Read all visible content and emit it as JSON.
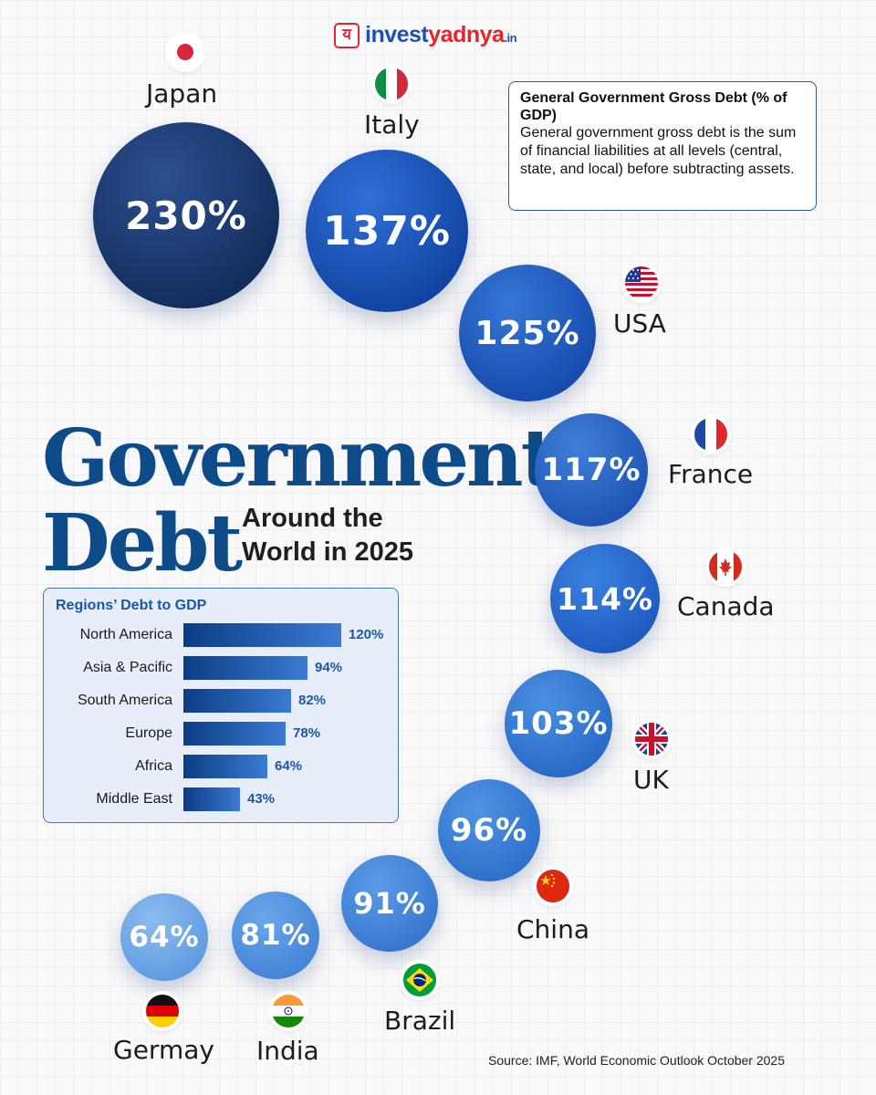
{
  "brand": {
    "logo_part1": "invest",
    "logo_part2": "yadnya",
    "logo_suffix": ".in",
    "logo_mark": "य"
  },
  "info_box": {
    "title": "General Government Gross Debt (% of GDP)",
    "body": "General government gross debt is the sum of financial liabilities at all levels (central, state, and local) before subtracting assets."
  },
  "headline": {
    "line1": "Government",
    "line2": "Debt",
    "subtitle": "Around the World in 2025"
  },
  "source": "Source: IMF, World Economic Outlook October 2025",
  "colors": {
    "title": "#0e4c89",
    "accent": "#1d56a8",
    "logo_red": "#e5262e"
  },
  "chart_data": [
    {
      "type": "bubble",
      "unit": "% of GDP",
      "items": [
        {
          "country": "Japan",
          "value": 230,
          "label": "230%",
          "flag": "japan-flag"
        },
        {
          "country": "Italy",
          "value": 137,
          "label": "137%",
          "flag": "italy-flag"
        },
        {
          "country": "USA",
          "value": 125,
          "label": "125%",
          "flag": "usa-flag"
        },
        {
          "country": "France",
          "value": 117,
          "label": "117%",
          "flag": "france-flag"
        },
        {
          "country": "Canada",
          "value": 114,
          "label": "114%",
          "flag": "canada-flag"
        },
        {
          "country": "UK",
          "value": 103,
          "label": "103%",
          "flag": "uk-flag"
        },
        {
          "country": "China",
          "value": 96,
          "label": "96%",
          "flag": "china-flag"
        },
        {
          "country": "Brazil",
          "value": 91,
          "label": "91%",
          "flag": "brazil-flag"
        },
        {
          "country": "India",
          "value": 81,
          "label": "81%",
          "flag": "india-flag"
        },
        {
          "country": "Germay",
          "value": 64,
          "label": "64%",
          "flag": "germany-flag"
        }
      ]
    },
    {
      "type": "bar",
      "orientation": "horizontal",
      "title": "Regions’ Debt to GDP",
      "categories": [
        "North America",
        "Asia & Pacific",
        "South America",
        "Europe",
        "Africa",
        "Middle East"
      ],
      "values": [
        120,
        94,
        82,
        78,
        64,
        43
      ],
      "value_labels": [
        "120%",
        "94%",
        "82%",
        "78%",
        "64%",
        "43%"
      ]
    }
  ]
}
